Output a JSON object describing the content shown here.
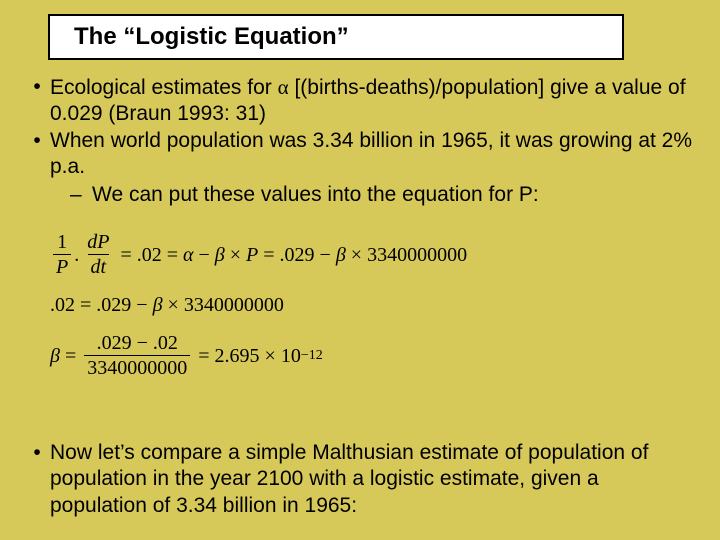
{
  "colors": {
    "background": "#d7c85a",
    "title_box_bg": "#ffffff",
    "title_box_border": "#000000",
    "text": "#000000"
  },
  "fonts": {
    "body_family": "Comic Sans MS",
    "math_family": "Times New Roman",
    "title_size_pt": 24,
    "body_size_pt": 21,
    "math_size_pt": 20
  },
  "title": "The “Logistic Equation”",
  "bullets": [
    {
      "pre": "Ecological estimates for ",
      "sym": "α",
      "post": " [(births-deaths)/population] give a value of 0.029 (Braun 1993: 31)"
    },
    {
      "text": "When world population was 3.34 billion in 1965, it was growing at 2% p.a.",
      "sub": "We can put these values into the equation for P:"
    }
  ],
  "equations": {
    "line1": {
      "frac1_num": "1",
      "frac1_den": "P",
      "frac2_num": "dP",
      "frac2_den": "dt",
      "eq1": "=",
      "val1": ".02",
      "eq2": "=",
      "alpha": "α",
      "minus1": "−",
      "beta1": "β",
      "times1": "×",
      "Pvar": "P",
      "eq3": "=",
      "val2": ".029",
      "minus2": "−",
      "beta2": "β",
      "times2": "×",
      "bigval": "3340000000"
    },
    "line2": {
      "lhs": ".02",
      "eq": "=",
      "rhs1": ".029",
      "minus": "−",
      "beta": "β",
      "times": "×",
      "bigval": "3340000000"
    },
    "line3": {
      "beta": "β",
      "eq1": "=",
      "frac_num": ".029 − .02",
      "frac_den": "3340000000",
      "eq2": "=",
      "coef": "2.695",
      "times": "×",
      "tenbase": "10",
      "exp": "−12"
    }
  },
  "bullet2": "Now let’s compare a simple Malthusian estimate of population of population in the year 2100 with a logistic estimate, given a population of 3.34 billion in 1965:"
}
